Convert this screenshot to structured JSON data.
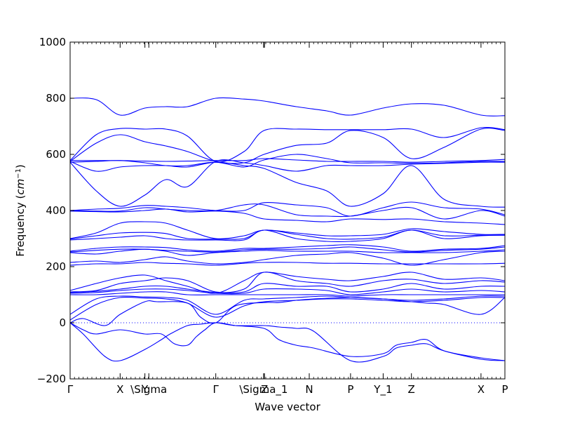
{
  "chart_data": {
    "type": "line",
    "title": "",
    "xlabel": "Wave vector",
    "ylabel": "Frequency ($cm^{-1}$)",
    "ylim": [
      -200,
      1000
    ],
    "yticks": [
      -200,
      0,
      200,
      400,
      600,
      800,
      1000
    ],
    "xlim": [
      0,
      100
    ],
    "high_symmetry_points": [
      {
        "label": "Γ",
        "x": 0
      },
      {
        "label": "X",
        "x": 11.5
      },
      {
        "label": "Y",
        "x": 17.2
      },
      {
        "label": "\\Sigma",
        "x": 18.1
      },
      {
        "label": "Γ",
        "x": 33.5
      },
      {
        "label": "\\Sigma_1",
        "x": 44.5
      },
      {
        "label": "Z",
        "x": 44.7
      },
      {
        "label": "N",
        "x": 55.0
      },
      {
        "label": "P",
        "x": 64.5
      },
      {
        "label": "Y_1",
        "x": 72.0
      },
      {
        "label": "Z",
        "x": 78.5
      },
      {
        "label": "X",
        "x": 94.5
      },
      {
        "label": "P",
        "x": 100
      }
    ],
    "zero_line": 0,
    "series_color": "#0000ff",
    "series": [
      {
        "x": [
          0,
          6,
          11.5,
          17.2,
          22,
          27,
          33.5,
          40,
          44.6,
          52,
          59,
          64.5,
          72,
          78.5,
          86,
          94.5,
          100
        ],
        "y": [
          800,
          795,
          740,
          765,
          770,
          770,
          800,
          797,
          790,
          770,
          755,
          740,
          765,
          780,
          775,
          740,
          738
        ]
      },
      {
        "x": [
          0,
          6,
          11.5,
          17.2,
          22,
          27,
          33.5,
          40,
          44.6,
          52,
          59,
          64.5,
          72,
          78.5,
          86,
          94.5,
          100
        ],
        "y": [
          578,
          670,
          692,
          690,
          690,
          665,
          575,
          610,
          685,
          690,
          688,
          688,
          688,
          690,
          660,
          695,
          688
        ]
      },
      {
        "x": [
          0,
          6,
          11.5,
          17.2,
          22,
          27,
          33.5,
          40,
          44.6,
          52,
          59,
          64.5,
          72,
          78.5,
          86,
          94.5,
          100
        ],
        "y": [
          575,
          640,
          670,
          645,
          630,
          610,
          575,
          570,
          600,
          632,
          640,
          685,
          660,
          585,
          625,
          690,
          685
        ]
      },
      {
        "x": [
          0,
          6,
          11.5,
          17.2,
          22,
          27,
          33.5,
          40,
          44.6,
          52,
          59,
          64.5,
          72,
          78.5,
          86,
          94.5,
          100
        ],
        "y": [
          578,
          578,
          578,
          576,
          575,
          576,
          578,
          578,
          585,
          580,
          575,
          575,
          575,
          572,
          575,
          578,
          582
        ]
      },
      {
        "x": [
          0,
          6,
          11.5,
          17.2,
          22,
          27,
          33.5,
          40,
          44.6,
          52,
          59,
          64.5,
          72,
          78.5,
          86,
          94.5,
          100
        ],
        "y": [
          572,
          575,
          578,
          570,
          560,
          560,
          572,
          555,
          580,
          600,
          585,
          570,
          570,
          568,
          570,
          575,
          575
        ]
      },
      {
        "x": [
          0,
          6,
          11.5,
          17.2,
          22,
          27,
          33.5,
          40,
          44.6,
          52,
          59,
          64.5,
          72,
          78.5,
          86,
          94.5,
          100
        ],
        "y": [
          572,
          470,
          415,
          455,
          510,
          485,
          575,
          570,
          560,
          540,
          560,
          560,
          560,
          565,
          568,
          572,
          572
        ]
      },
      {
        "x": [
          0,
          6,
          11.5,
          17.2,
          22,
          27,
          33.5,
          40,
          44.6,
          52,
          59,
          64.5,
          72,
          78.5,
          86,
          94.5,
          100
        ],
        "y": [
          575,
          540,
          555,
          560,
          560,
          555,
          572,
          560,
          550,
          500,
          470,
          415,
          460,
          560,
          440,
          415,
          412
        ]
      },
      {
        "x": [
          0,
          6,
          11.5,
          17.2,
          22,
          27,
          33.5,
          40,
          44.6,
          52,
          59,
          64.5,
          72,
          78.5,
          86,
          94.5,
          100
        ],
        "y": [
          400,
          405,
          408,
          418,
          415,
          410,
          400,
          400,
          428,
          420,
          410,
          380,
          410,
          430,
          410,
          405,
          385
        ]
      },
      {
        "x": [
          0,
          6,
          11.5,
          17.2,
          22,
          27,
          33.5,
          40,
          44.6,
          52,
          59,
          64.5,
          72,
          78.5,
          86,
          94.5,
          100
        ],
        "y": [
          400,
          398,
          398,
          410,
          405,
          400,
          400,
          420,
          420,
          385,
          380,
          380,
          400,
          410,
          370,
          400,
          380
        ]
      },
      {
        "x": [
          0,
          6,
          11.5,
          17.2,
          22,
          27,
          33.5,
          40,
          44.6,
          52,
          59,
          64.5,
          72,
          78.5,
          86,
          94.5,
          100
        ],
        "y": [
          398,
          396,
          395,
          400,
          405,
          395,
          398,
          390,
          370,
          365,
          360,
          370,
          368,
          370,
          360,
          355,
          350
        ]
      },
      {
        "x": [
          0,
          6,
          11.5,
          17.2,
          22,
          27,
          33.5,
          40,
          44.6,
          52,
          59,
          64.5,
          72,
          78.5,
          86,
          94.5,
          100
        ],
        "y": [
          300,
          320,
          355,
          360,
          355,
          330,
          300,
          310,
          330,
          320,
          310,
          310,
          315,
          335,
          325,
          315,
          315
        ]
      },
      {
        "x": [
          0,
          6,
          11.5,
          17.2,
          22,
          27,
          33.5,
          40,
          44.6,
          52,
          59,
          64.5,
          72,
          78.5,
          86,
          94.5,
          100
        ],
        "y": [
          298,
          310,
          320,
          322,
          318,
          300,
          298,
          300,
          330,
          315,
          300,
          298,
          305,
          330,
          310,
          312,
          312
        ]
      },
      {
        "x": [
          0,
          6,
          11.5,
          17.2,
          22,
          27,
          33.5,
          40,
          44.6,
          52,
          59,
          64.5,
          72,
          78.5,
          86,
          94.5,
          100
        ],
        "y": [
          295,
          300,
          305,
          310,
          300,
          295,
          295,
          295,
          330,
          300,
          290,
          290,
          300,
          330,
          300,
          310,
          312
        ]
      },
      {
        "x": [
          0,
          6,
          11.5,
          17.2,
          22,
          27,
          33.5,
          40,
          44.6,
          52,
          59,
          64.5,
          72,
          78.5,
          86,
          94.5,
          100
        ],
        "y": [
          255,
          265,
          270,
          270,
          268,
          260,
          255,
          265,
          265,
          270,
          275,
          278,
          270,
          255,
          262,
          265,
          275
        ]
      },
      {
        "x": [
          0,
          6,
          11.5,
          17.2,
          22,
          27,
          33.5,
          40,
          44.6,
          52,
          59,
          64.5,
          72,
          78.5,
          86,
          94.5,
          100
        ],
        "y": [
          252,
          258,
          262,
          262,
          258,
          255,
          252,
          260,
          262,
          262,
          265,
          270,
          260,
          252,
          258,
          262,
          270
        ]
      },
      {
        "x": [
          0,
          6,
          11.5,
          17.2,
          22,
          27,
          33.5,
          40,
          44.6,
          52,
          59,
          64.5,
          72,
          78.5,
          86,
          94.5,
          100
        ],
        "y": [
          250,
          245,
          255,
          262,
          255,
          240,
          250,
          255,
          258,
          255,
          255,
          255,
          250,
          250,
          250,
          255,
          260
        ]
      },
      {
        "x": [
          0,
          6,
          11.5,
          17.2,
          22,
          27,
          33.5,
          40,
          44.6,
          52,
          59,
          64.5,
          72,
          78.5,
          86,
          94.5,
          100
        ],
        "y": [
          215,
          220,
          215,
          225,
          235,
          220,
          210,
          215,
          225,
          240,
          245,
          250,
          230,
          205,
          225,
          250,
          255
        ]
      },
      {
        "x": [
          0,
          6,
          11.5,
          17.2,
          22,
          27,
          33.5,
          40,
          44.6,
          52,
          59,
          64.5,
          72,
          78.5,
          86,
          94.5,
          100
        ],
        "y": [
          205,
          210,
          210,
          215,
          212,
          210,
          205,
          212,
          215,
          215,
          212,
          212,
          210,
          210,
          210,
          210,
          212
        ]
      },
      {
        "x": [
          0,
          6,
          11.5,
          17.2,
          22,
          27,
          33.5,
          40,
          44.6,
          52,
          59,
          64.5,
          72,
          78.5,
          86,
          94.5,
          100
        ],
        "y": [
          115,
          140,
          160,
          170,
          150,
          130,
          105,
          150,
          180,
          165,
          155,
          150,
          165,
          180,
          155,
          160,
          150
        ]
      },
      {
        "x": [
          0,
          6,
          11.5,
          17.2,
          22,
          27,
          33.5,
          40,
          44.6,
          52,
          59,
          64.5,
          72,
          78.5,
          86,
          94.5,
          100
        ],
        "y": [
          110,
          115,
          140,
          150,
          160,
          150,
          110,
          120,
          180,
          150,
          140,
          130,
          150,
          155,
          140,
          150,
          145
        ]
      },
      {
        "x": [
          0,
          6,
          11.5,
          17.2,
          22,
          27,
          33.5,
          40,
          44.6,
          52,
          59,
          64.5,
          72,
          78.5,
          86,
          94.5,
          100
        ],
        "y": [
          108,
          112,
          120,
          130,
          130,
          120,
          108,
          110,
          140,
          130,
          130,
          110,
          120,
          140,
          120,
          130,
          130
        ]
      },
      {
        "x": [
          0,
          6,
          11.5,
          17.2,
          22,
          27,
          33.5,
          40,
          44.6,
          52,
          59,
          64.5,
          72,
          78.5,
          86,
          94.5,
          100
        ],
        "y": [
          105,
          108,
          115,
          120,
          120,
          115,
          105,
          105,
          120,
          120,
          115,
          100,
          110,
          120,
          110,
          115,
          110
        ]
      },
      {
        "x": [
          0,
          6,
          11.5,
          17.2,
          22,
          27,
          33.5,
          40,
          44.6,
          52,
          59,
          64.5,
          72,
          78.5,
          86,
          94.5,
          100
        ],
        "y": [
          100,
          100,
          105,
          110,
          110,
          100,
          100,
          100,
          100,
          100,
          100,
          95,
          100,
          100,
          100,
          100,
          100
        ]
      },
      {
        "x": [
          0,
          6,
          11.5,
          17.2,
          22,
          27,
          33.5,
          40,
          44.6,
          52,
          59,
          64.5,
          72,
          78.5,
          86,
          94.5,
          100
        ],
        "y": [
          30,
          85,
          95,
          92,
          90,
          80,
          30,
          80,
          85,
          90,
          95,
          90,
          85,
          80,
          85,
          95,
          95
        ]
      },
      {
        "x": [
          0,
          6,
          11.5,
          17.2,
          22,
          27,
          33.5,
          40,
          44.6,
          52,
          59,
          64.5,
          72,
          78.5,
          86,
          94.5,
          100
        ],
        "y": [
          10,
          65,
          90,
          88,
          85,
          70,
          20,
          60,
          75,
          80,
          85,
          85,
          80,
          75,
          80,
          90,
          90
        ]
      },
      {
        "x": [
          0,
          3,
          8,
          11.5,
          17.2,
          20,
          27,
          30,
          33.5,
          38,
          44.6,
          48,
          52,
          56,
          64.5,
          72,
          75,
          78.5,
          82,
          86,
          94.5,
          100
        ],
        "y": [
          0,
          15,
          -10,
          30,
          75,
          75,
          70,
          20,
          0,
          60,
          72,
          72,
          80,
          85,
          90,
          85,
          80,
          75,
          70,
          65,
          30,
          90
        ]
      },
      {
        "x": [
          0,
          3,
          6,
          11.5,
          17.2,
          21,
          24,
          27,
          29,
          31,
          33.5,
          38,
          44.6,
          48,
          52,
          56,
          64.5,
          72,
          75,
          78.5,
          82,
          86,
          94.5,
          100
        ],
        "y": [
          0,
          -25,
          -40,
          -25,
          -40,
          -40,
          -75,
          -80,
          -50,
          -25,
          0,
          -10,
          -20,
          -60,
          -80,
          -90,
          -120,
          -110,
          -80,
          -70,
          -60,
          -100,
          -125,
          -135
        ]
      },
      {
        "x": [
          0,
          3,
          8,
          11.5,
          17.2,
          21,
          23,
          27,
          30,
          33.5,
          38,
          44.6,
          48,
          52,
          56,
          64.5,
          72,
          75,
          78.5,
          82,
          86,
          94.5,
          100
        ],
        "y": [
          0,
          -40,
          -120,
          -135,
          -95,
          -60,
          -40,
          -10,
          -5,
          0,
          -10,
          -10,
          -15,
          -20,
          -30,
          -135,
          -120,
          -90,
          -80,
          -75,
          -100,
          -130,
          -135
        ]
      }
    ]
  }
}
